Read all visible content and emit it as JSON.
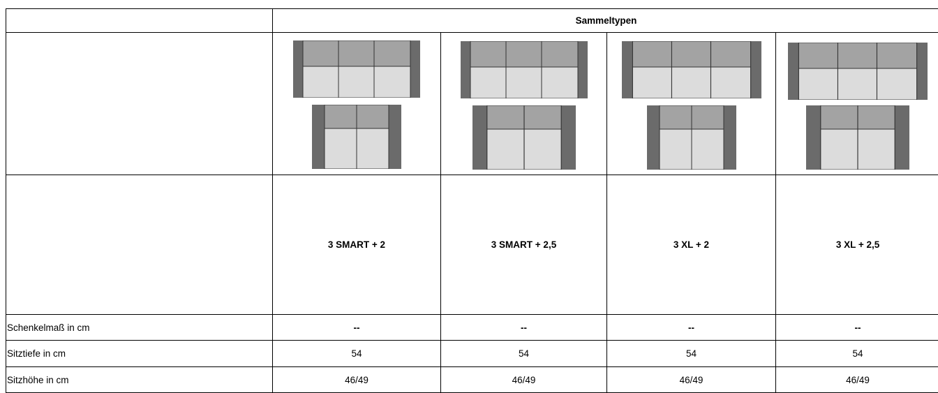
{
  "header": {
    "title": "Sammeltypen"
  },
  "models": [
    "3 SMART + 2",
    "3 SMART + 2,5",
    "3 XL + 2",
    "3 XL + 2,5"
  ],
  "rows": [
    {
      "label": "Schenkelmaß in cm",
      "values": [
        "--",
        "--",
        "--",
        "--"
      ]
    },
    {
      "label": "Sitztiefe in cm",
      "values": [
        "54",
        "54",
        "54",
        "54"
      ]
    },
    {
      "label": "Sitzhöhe in cm",
      "values": [
        "46/49",
        "46/49",
        "46/49",
        "46/49"
      ]
    }
  ]
}
